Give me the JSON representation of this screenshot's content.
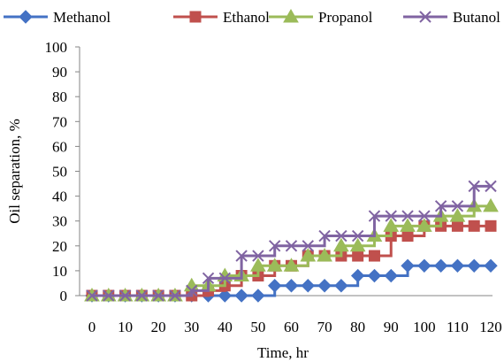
{
  "chart_data": {
    "type": "line",
    "xlabel": "Time, hr",
    "ylabel": "Oil separation, %",
    "xlim": [
      0,
      120
    ],
    "ylim": [
      0,
      100
    ],
    "x_ticks": [
      0,
      10,
      20,
      30,
      40,
      50,
      60,
      70,
      80,
      90,
      100,
      110,
      120
    ],
    "y_ticks": [
      0,
      10,
      20,
      30,
      40,
      50,
      60,
      70,
      80,
      90,
      100
    ],
    "grid": false,
    "legend_position": "top",
    "line_style": "step",
    "x": [
      0,
      5,
      10,
      15,
      20,
      25,
      30,
      35,
      40,
      45,
      50,
      55,
      60,
      65,
      70,
      75,
      80,
      85,
      90,
      95,
      100,
      105,
      110,
      115,
      120
    ],
    "series": [
      {
        "name": "Methanol",
        "color": "#4472C4",
        "marker": "diamond",
        "values": [
          0,
          0,
          0,
          0,
          0,
          0,
          0,
          0,
          0,
          0,
          0,
          4,
          4,
          4,
          4,
          4,
          8,
          8,
          8,
          12,
          12,
          12,
          12,
          12,
          12
        ]
      },
      {
        "name": "Ethanol",
        "color": "#C0504D",
        "marker": "square",
        "values": [
          0,
          0,
          0,
          0,
          0,
          0,
          0,
          2,
          4,
          8,
          8,
          12,
          12,
          16,
          16,
          16,
          16,
          16,
          24,
          24,
          28,
          28,
          28,
          28,
          28
        ]
      },
      {
        "name": "Propanol",
        "color": "#9BBB59",
        "marker": "triangle",
        "values": [
          0,
          0,
          0,
          0,
          0,
          0,
          4,
          4,
          8,
          8,
          12,
          12,
          12,
          16,
          16,
          20,
          20,
          24,
          28,
          28,
          28,
          32,
          32,
          36,
          36
        ]
      },
      {
        "name": "Butanol",
        "color": "#8064A2",
        "marker": "x",
        "values": [
          0,
          0,
          0,
          0,
          0,
          0,
          2,
          7,
          7,
          16,
          16,
          20,
          20,
          20,
          24,
          24,
          24,
          32,
          32,
          32,
          32,
          36,
          36,
          44,
          44
        ]
      }
    ]
  }
}
